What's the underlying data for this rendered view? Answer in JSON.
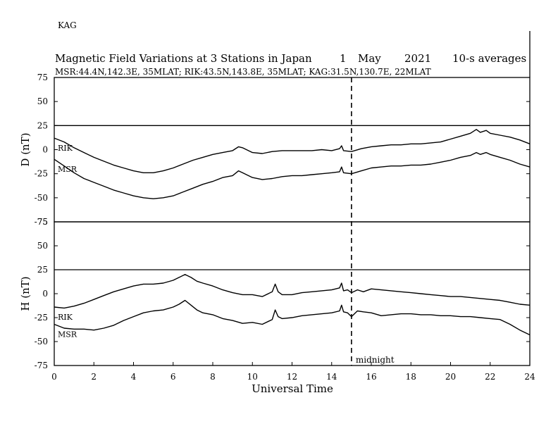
{
  "station_tag": "KAG",
  "chart_data": {
    "type": "line",
    "title": {
      "text": "Magnetic Field Variations at 3 Stations in Japan",
      "day": "1",
      "month": "May",
      "year": "2021",
      "note": "10-s averages"
    },
    "subtitle": "MSR:44.4N,142.3E, 35MLAT;  RIK:43.5N,143.8E, 35MLAT;  KAG:31.5N,130.7E, 22MLAT",
    "xlabel": "Universal Time",
    "xlim": [
      0,
      24
    ],
    "xticks": [
      0,
      2,
      4,
      6,
      8,
      10,
      12,
      14,
      16,
      18,
      20,
      22,
      24
    ],
    "midnight": {
      "x": 15,
      "label": "midnight"
    },
    "panels": [
      {
        "ylabel": "D (nT)",
        "ylim": [
          -75,
          75
        ],
        "yticks": [
          75,
          50,
          25,
          0,
          -25,
          -50,
          -75
        ],
        "baseline": 25,
        "series": [
          {
            "name": "RIK",
            "x": [
              0,
              0.5,
              1,
              1.5,
              2,
              2.5,
              3,
              3.5,
              4,
              4.5,
              5,
              5.5,
              6,
              6.5,
              7,
              7.5,
              8,
              8.5,
              9,
              9.3,
              9.5,
              9.8,
              10,
              10.5,
              11,
              11.5,
              12,
              12.5,
              13,
              13.5,
              14,
              14.4,
              14.5,
              14.6,
              15,
              15.5,
              16,
              16.5,
              17,
              17.5,
              18,
              18.5,
              19,
              19.5,
              20,
              20.5,
              21,
              21.3,
              21.5,
              21.8,
              22,
              22.5,
              23,
              23.5,
              24
            ],
            "values": [
              12,
              8,
              2,
              -3,
              -8,
              -12,
              -16,
              -19,
              -22,
              -24,
              -24,
              -22,
              -19,
              -15,
              -11,
              -8,
              -5,
              -3,
              -1,
              3,
              2,
              -1,
              -3,
              -4,
              -2,
              -1,
              -1,
              -1,
              -1,
              0,
              -1,
              1,
              4,
              -1,
              -2,
              1,
              3,
              4,
              5,
              5,
              6,
              6,
              7,
              8,
              11,
              14,
              17,
              21,
              18,
              20,
              17,
              15,
              13,
              10,
              6
            ]
          },
          {
            "name": "MSR",
            "x": [
              0,
              0.5,
              1,
              1.5,
              2,
              2.5,
              3,
              3.5,
              4,
              4.5,
              5,
              5.5,
              6,
              6.5,
              7,
              7.5,
              8,
              8.5,
              9,
              9.3,
              9.5,
              9.8,
              10,
              10.5,
              11,
              11.5,
              12,
              12.5,
              13,
              13.5,
              14,
              14.4,
              14.5,
              14.6,
              15,
              15.5,
              16,
              16.5,
              17,
              17.5,
              18,
              18.5,
              19,
              19.5,
              20,
              20.5,
              21,
              21.3,
              21.5,
              21.8,
              22,
              22.5,
              23,
              23.5,
              24
            ],
            "values": [
              -10,
              -17,
              -24,
              -30,
              -34,
              -38,
              -42,
              -45,
              -48,
              -50,
              -51,
              -50,
              -48,
              -44,
              -40,
              -36,
              -33,
              -29,
              -27,
              -22,
              -24,
              -27,
              -29,
              -31,
              -30,
              -28,
              -27,
              -27,
              -26,
              -25,
              -24,
              -23,
              -18,
              -24,
              -25,
              -22,
              -19,
              -18,
              -17,
              -17,
              -16,
              -16,
              -15,
              -13,
              -11,
              -8,
              -6,
              -3,
              -5,
              -3,
              -5,
              -8,
              -11,
              -15,
              -18
            ]
          }
        ]
      },
      {
        "ylabel": "H (nT)",
        "ylim": [
          -75,
          75
        ],
        "yticks": [
          75,
          50,
          25,
          0,
          -25,
          -50,
          -75
        ],
        "baseline": 25,
        "series": [
          {
            "name": "RIK",
            "x": [
              0,
              0.5,
              1,
              1.5,
              2,
              2.5,
              3,
              3.5,
              4,
              4.5,
              5,
              5.5,
              6,
              6.3,
              6.6,
              6.9,
              7.2,
              7.5,
              8,
              8.5,
              9,
              9.5,
              10,
              10.5,
              11,
              11.15,
              11.3,
              11.5,
              12,
              12.5,
              13,
              13.5,
              14,
              14.4,
              14.5,
              14.6,
              14.8,
              15,
              15.3,
              15.6,
              16,
              16.5,
              17,
              17.5,
              18,
              18.5,
              19,
              19.5,
              20,
              20.5,
              21,
              21.5,
              22,
              22.5,
              23,
              23.5,
              24
            ],
            "values": [
              -14,
              -15,
              -13,
              -10,
              -6,
              -2,
              2,
              5,
              8,
              10,
              10,
              11,
              14,
              17,
              20,
              17,
              13,
              11,
              8,
              4,
              1,
              -1,
              -1,
              -3,
              2,
              10,
              2,
              -1,
              -1,
              1,
              2,
              3,
              4,
              6,
              11,
              3,
              4,
              1,
              4,
              2,
              5,
              4,
              3,
              2,
              1,
              0,
              -1,
              -2,
              -3,
              -3,
              -4,
              -5,
              -6,
              -7,
              -9,
              -11,
              -12
            ]
          },
          {
            "name": "MSR",
            "x": [
              0,
              0.5,
              1,
              1.5,
              2,
              2.5,
              3,
              3.5,
              4,
              4.5,
              5,
              5.5,
              6,
              6.3,
              6.6,
              6.9,
              7.2,
              7.5,
              8,
              8.5,
              9,
              9.5,
              10,
              10.5,
              11,
              11.15,
              11.3,
              11.5,
              12,
              12.5,
              13,
              13.5,
              14,
              14.4,
              14.5,
              14.6,
              14.8,
              15,
              15.3,
              15.6,
              16,
              16.5,
              17,
              17.5,
              18,
              18.5,
              19,
              19.5,
              20,
              20.5,
              21,
              21.5,
              22,
              22.5,
              23,
              23.5,
              24
            ],
            "values": [
              -32,
              -36,
              -37,
              -37,
              -38,
              -36,
              -33,
              -28,
              -24,
              -20,
              -18,
              -17,
              -14,
              -11,
              -7,
              -12,
              -17,
              -20,
              -22,
              -26,
              -28,
              -31,
              -30,
              -32,
              -27,
              -17,
              -24,
              -26,
              -25,
              -23,
              -22,
              -21,
              -20,
              -18,
              -12,
              -19,
              -20,
              -24,
              -18,
              -19,
              -20,
              -23,
              -22,
              -21,
              -21,
              -22,
              -22,
              -23,
              -23,
              -24,
              -24,
              -25,
              -26,
              -27,
              -32,
              -38,
              -43
            ]
          }
        ]
      }
    ]
  }
}
